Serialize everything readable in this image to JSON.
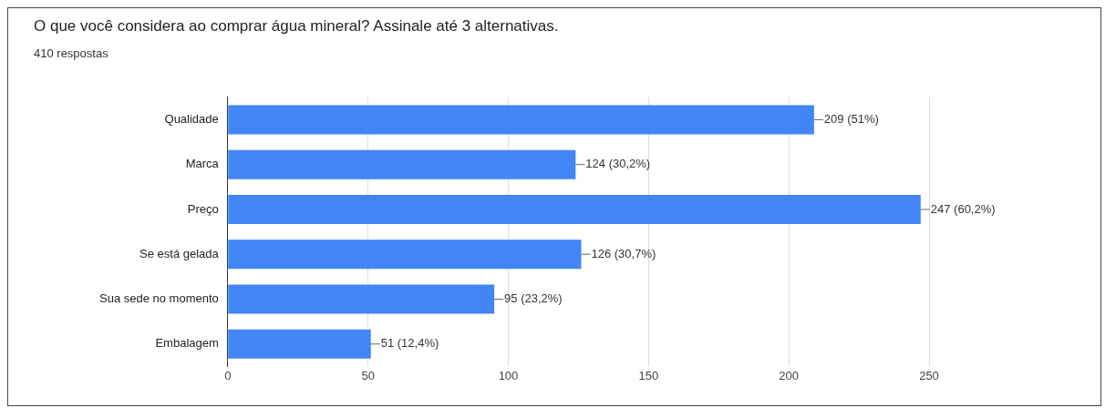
{
  "chart_data": {
    "type": "bar",
    "orientation": "horizontal",
    "title": "O que você considera ao comprar água mineral? Assinale até 3 alternativas.",
    "subtitle": "410 respostas",
    "categories": [
      "Qualidade",
      "Marca",
      "Preço",
      "Se está gelada",
      "Sua sede no momento",
      "Embalagem"
    ],
    "values": [
      209,
      124,
      247,
      126,
      95,
      51
    ],
    "value_labels": [
      "209 (51%)",
      "124 (30,2%)",
      "247 (60,2%)",
      "126 (30,7%)",
      "95 (23,2%)",
      "51 (12,4%)"
    ],
    "color": "#4285f4",
    "xlim": [
      0,
      250
    ],
    "xticks": [
      0,
      50,
      100,
      150,
      200,
      250
    ],
    "grid": "x",
    "legend": false
  }
}
